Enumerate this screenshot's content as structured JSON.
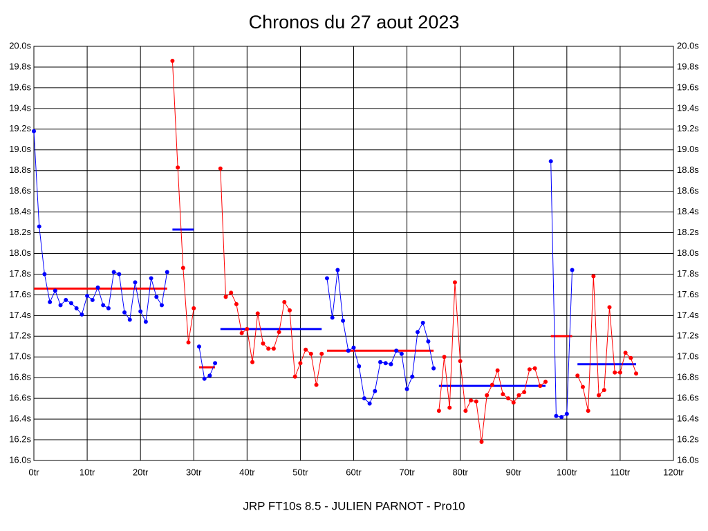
{
  "chart_data": {
    "type": "line",
    "title": "Chronos du 27 aout 2023",
    "xlabel": "JRP FT10s 8.5 - JULIEN PARNOT - Pro10",
    "xlim": [
      0,
      120
    ],
    "xticks": [
      {
        "value": 0,
        "label": "0tr"
      },
      {
        "value": 10,
        "label": "10tr"
      },
      {
        "value": 20,
        "label": "20tr"
      },
      {
        "value": 30,
        "label": "30tr"
      },
      {
        "value": 40,
        "label": "40tr"
      },
      {
        "value": 50,
        "label": "50tr"
      },
      {
        "value": 60,
        "label": "60tr"
      },
      {
        "value": 70,
        "label": "70tr"
      },
      {
        "value": 80,
        "label": "80tr"
      },
      {
        "value": 90,
        "label": "90tr"
      },
      {
        "value": 100,
        "label": "100tr"
      },
      {
        "value": 110,
        "label": "110tr"
      },
      {
        "value": 120,
        "label": "120tr"
      }
    ],
    "ylim": [
      16.0,
      20.0
    ],
    "yticks": [
      {
        "value": 16.0,
        "label": "16.0s"
      },
      {
        "value": 16.2,
        "label": "16.2s"
      },
      {
        "value": 16.4,
        "label": "16.4s"
      },
      {
        "value": 16.6,
        "label": "16.6s"
      },
      {
        "value": 16.8,
        "label": "16.8s"
      },
      {
        "value": 17.0,
        "label": "17.0s"
      },
      {
        "value": 17.2,
        "label": "17.2s"
      },
      {
        "value": 17.4,
        "label": "17.4s"
      },
      {
        "value": 17.6,
        "label": "17.6s"
      },
      {
        "value": 17.8,
        "label": "17.8s"
      },
      {
        "value": 18.0,
        "label": "18.0s"
      },
      {
        "value": 18.2,
        "label": "18.2s"
      },
      {
        "value": 18.4,
        "label": "18.4s"
      },
      {
        "value": 18.6,
        "label": "18.6s"
      },
      {
        "value": 18.8,
        "label": "18.8s"
      },
      {
        "value": 19.0,
        "label": "19.0s"
      },
      {
        "value": 19.2,
        "label": "19.2s"
      },
      {
        "value": 19.4,
        "label": "19.4s"
      },
      {
        "value": 19.6,
        "label": "19.6s"
      },
      {
        "value": 19.8,
        "label": "19.8s"
      },
      {
        "value": 20.0,
        "label": "20.0s"
      }
    ],
    "grid": true,
    "series": [
      {
        "color": "#0000ff",
        "x": [
          0,
          1,
          2,
          3,
          4,
          5,
          6,
          7,
          8,
          9,
          10,
          11,
          12,
          13,
          14,
          15,
          16,
          17,
          18,
          19,
          20,
          21,
          22,
          23,
          24,
          25
        ],
        "values": [
          19.18,
          18.26,
          17.8,
          17.53,
          17.64,
          17.5,
          17.55,
          17.52,
          17.47,
          17.41,
          17.59,
          17.55,
          17.67,
          17.5,
          17.47,
          17.82,
          17.8,
          17.43,
          17.36,
          17.72,
          17.44,
          17.34,
          17.76,
          17.58,
          17.5,
          17.82
        ]
      },
      {
        "color": "#ff0000",
        "x": [
          26,
          27,
          28,
          29,
          30
        ],
        "values": [
          19.86,
          18.83,
          17.86,
          17.14,
          17.47
        ]
      },
      {
        "color": "#0000ff",
        "x": [
          31,
          32,
          33,
          34
        ],
        "values": [
          17.1,
          16.79,
          16.82,
          16.94
        ]
      },
      {
        "color": "#ff0000",
        "x": [
          35,
          36,
          37,
          38,
          39,
          40,
          41,
          42,
          43,
          44,
          45,
          46,
          47,
          48,
          49,
          50,
          51,
          52,
          53,
          54
        ],
        "values": [
          18.82,
          17.58,
          17.62,
          17.51,
          17.23,
          17.27,
          16.95,
          17.42,
          17.13,
          17.08,
          17.08,
          17.24,
          17.53,
          17.45,
          16.81,
          16.94,
          17.07,
          17.03,
          16.73,
          17.03
        ]
      },
      {
        "color": "#0000ff",
        "x": [
          55,
          56,
          57,
          58,
          59,
          60,
          61,
          62,
          63,
          64,
          65,
          66,
          67,
          68,
          69,
          70,
          71,
          72,
          73,
          74,
          75
        ],
        "values": [
          17.76,
          17.38,
          17.84,
          17.35,
          17.06,
          17.09,
          16.91,
          16.6,
          16.55,
          16.67,
          16.95,
          16.94,
          16.93,
          17.06,
          17.03,
          16.69,
          16.81,
          17.24,
          17.33,
          17.15,
          16.89
        ]
      },
      {
        "color": "#ff0000",
        "x": [
          76,
          77,
          78,
          79,
          80,
          81,
          82,
          83,
          84,
          85,
          86,
          87,
          88,
          89,
          90,
          91,
          92,
          93,
          94,
          95,
          96
        ],
        "values": [
          16.48,
          17.0,
          16.51,
          17.72,
          16.96,
          16.48,
          16.58,
          16.57,
          16.18,
          16.63,
          16.73,
          16.87,
          16.64,
          16.6,
          16.56,
          16.63,
          16.66,
          16.88,
          16.89,
          16.72,
          16.76
        ]
      },
      {
        "color": "#0000ff",
        "x": [
          97,
          98,
          99,
          100,
          101
        ],
        "values": [
          18.89,
          16.43,
          16.42,
          16.45,
          17.84
        ]
      },
      {
        "color": "#ff0000",
        "x": [
          102,
          103,
          104,
          105,
          106,
          107,
          108,
          109,
          110,
          111,
          112,
          113
        ],
        "values": [
          16.82,
          16.71,
          16.48,
          17.78,
          16.63,
          16.68,
          17.48,
          16.85,
          16.85,
          17.04,
          16.99,
          16.84
        ]
      }
    ],
    "mean_lines": [
      {
        "color": "#ff0000",
        "x": [
          0,
          25
        ],
        "value": 17.66
      },
      {
        "color": "#0000ff",
        "x": [
          26,
          30
        ],
        "value": 18.23
      },
      {
        "color": "#ff0000",
        "x": [
          31,
          34
        ],
        "value": 16.9
      },
      {
        "color": "#0000ff",
        "x": [
          35,
          54
        ],
        "value": 17.27
      },
      {
        "color": "#ff0000",
        "x": [
          55,
          75
        ],
        "value": 17.06
      },
      {
        "color": "#0000ff",
        "x": [
          76,
          96
        ],
        "value": 16.72
      },
      {
        "color": "#ff0000",
        "x": [
          97,
          101
        ],
        "value": 17.2
      },
      {
        "color": "#0000ff",
        "x": [
          102,
          113
        ],
        "value": 16.93
      }
    ]
  }
}
